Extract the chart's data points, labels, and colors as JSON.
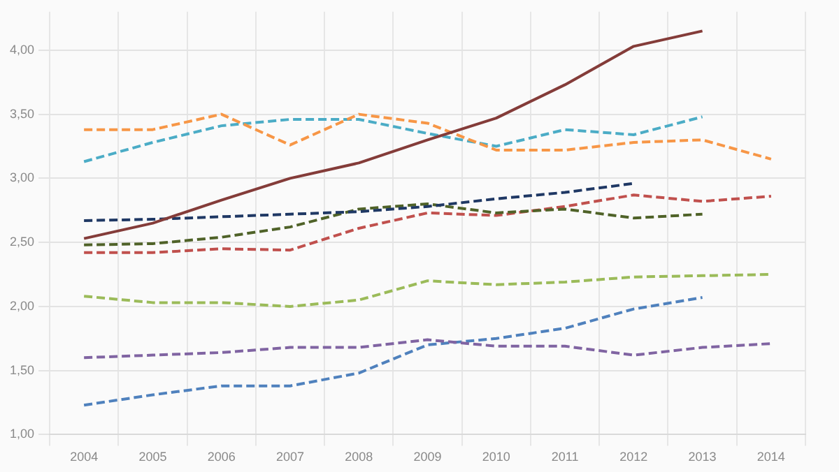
{
  "chart_data": {
    "type": "line",
    "categories": [
      "2004",
      "2005",
      "2006",
      "2007",
      "2008",
      "2009",
      "2010",
      "2011",
      "2012",
      "2013",
      "2014"
    ],
    "series": [
      {
        "color": "#843c39",
        "line_style": "solid",
        "values": [
          2.53,
          2.65,
          2.83,
          3.0,
          3.12,
          3.3,
          3.47,
          3.73,
          4.03,
          4.15,
          null
        ]
      },
      {
        "color": "#f79646",
        "line_style": "dashed",
        "values": [
          3.38,
          3.38,
          3.5,
          3.26,
          3.5,
          3.43,
          3.22,
          3.22,
          3.28,
          3.3,
          3.15
        ]
      },
      {
        "color": "#4bacc6",
        "line_style": "dashed",
        "values": [
          3.13,
          3.28,
          3.41,
          3.46,
          3.46,
          3.35,
          3.25,
          3.38,
          3.34,
          3.48,
          null
        ]
      },
      {
        "color": "#1f3864",
        "line_style": "dashed",
        "values": [
          2.67,
          2.68,
          2.7,
          2.72,
          2.74,
          2.78,
          2.84,
          2.89,
          2.96,
          null,
          null
        ]
      },
      {
        "color": "#4f6228",
        "line_style": "dashed",
        "values": [
          2.48,
          2.49,
          2.54,
          2.62,
          2.76,
          2.8,
          2.73,
          2.76,
          2.69,
          2.72,
          null
        ]
      },
      {
        "color": "#c0504d",
        "line_style": "dashed",
        "values": [
          2.42,
          2.42,
          2.45,
          2.44,
          2.61,
          2.73,
          2.71,
          2.78,
          2.87,
          2.82,
          2.86
        ]
      },
      {
        "color": "#9bbb59",
        "line_style": "dashed",
        "values": [
          2.08,
          2.03,
          2.03,
          2.0,
          2.05,
          2.2,
          2.17,
          2.19,
          2.23,
          2.24,
          2.25
        ]
      },
      {
        "color": "#8064a2",
        "line_style": "dashed",
        "values": [
          1.6,
          1.62,
          1.64,
          1.68,
          1.68,
          1.74,
          1.69,
          1.69,
          1.62,
          1.68,
          1.71
        ]
      },
      {
        "color": "#4f81bd",
        "line_style": "dashed",
        "values": [
          1.23,
          1.31,
          1.38,
          1.38,
          1.48,
          1.7,
          1.75,
          1.83,
          1.98,
          2.07,
          null
        ]
      }
    ],
    "ylim": [
      1,
      4.3
    ],
    "yticks": [
      {
        "value": 1,
        "label": "1,00"
      },
      {
        "value": 1.5,
        "label": "1,50"
      },
      {
        "value": 2,
        "label": "2,00"
      },
      {
        "value": 2.5,
        "label": "2,50"
      },
      {
        "value": 3,
        "label": "3,00"
      },
      {
        "value": 3.5,
        "label": "3,50"
      },
      {
        "value": 4,
        "label": "4,00"
      }
    ],
    "grid": true,
    "legend": false,
    "marker": "none"
  }
}
